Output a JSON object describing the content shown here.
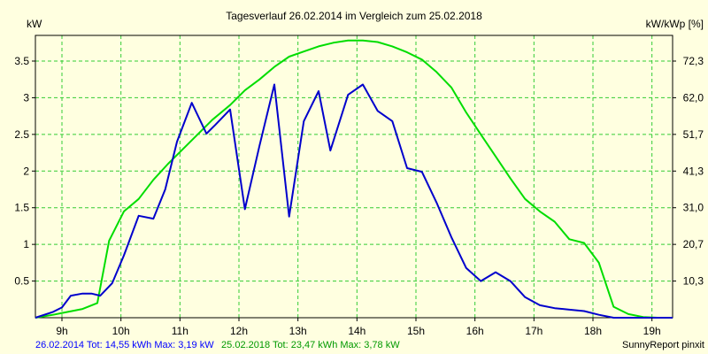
{
  "chart_data": {
    "type": "line",
    "title": "Tagesverlauf 26.02.2014 im Vergleich zum 25.02.2018",
    "ylabel_left": "kW",
    "ylabel_right": "kW/kWp [%]",
    "xlim": [
      8.55,
      19.35
    ],
    "ylim": [
      0,
      3.85
    ],
    "grid": true,
    "x_ticks": [
      {
        "x": 9,
        "label": "9h"
      },
      {
        "x": 10,
        "label": "10h"
      },
      {
        "x": 11,
        "label": "11h"
      },
      {
        "x": 12,
        "label": "12h"
      },
      {
        "x": 13,
        "label": "13h"
      },
      {
        "x": 14,
        "label": "14h"
      },
      {
        "x": 15,
        "label": "15h"
      },
      {
        "x": 16,
        "label": "16h"
      },
      {
        "x": 17,
        "label": "17h"
      },
      {
        "x": 18,
        "label": "18h"
      },
      {
        "x": 19,
        "label": "19h"
      }
    ],
    "y_ticks_left": [
      {
        "y": 0.5,
        "label": "0.5"
      },
      {
        "y": 1,
        "label": "1"
      },
      {
        "y": 1.5,
        "label": "1.5"
      },
      {
        "y": 2,
        "label": "2"
      },
      {
        "y": 2.5,
        "label": "2.5"
      },
      {
        "y": 3,
        "label": "3"
      },
      {
        "y": 3.5,
        "label": "3.5"
      }
    ],
    "y_ticks_right": [
      {
        "y": 0.5,
        "label": "10,3"
      },
      {
        "y": 1,
        "label": "20,7"
      },
      {
        "y": 1.5,
        "label": "31,0"
      },
      {
        "y": 2,
        "label": "41,3"
      },
      {
        "y": 2.5,
        "label": "51,7"
      },
      {
        "y": 3,
        "label": "62,0"
      },
      {
        "y": 3.5,
        "label": "72,3"
      }
    ],
    "series": [
      {
        "label": "26.02.2014 Tot: 14,55 kWh Max: 3,19 kW",
        "color": "#0000cc",
        "x": [
          8.55,
          8.85,
          9.0,
          9.15,
          9.35,
          9.5,
          9.65,
          9.85,
          10.05,
          10.3,
          10.55,
          10.75,
          10.95,
          11.2,
          11.45,
          11.6,
          11.85,
          12.1,
          12.35,
          12.6,
          12.85,
          13.1,
          13.35,
          13.55,
          13.85,
          14.1,
          14.35,
          14.6,
          14.85,
          15.1,
          15.35,
          15.6,
          15.85,
          16.1,
          16.35,
          16.6,
          16.85,
          17.1,
          17.35,
          17.6,
          17.85,
          18.1,
          18.35,
          18.55,
          18.8,
          19.0,
          19.35
        ],
        "values": [
          0.0,
          0.08,
          0.14,
          0.3,
          0.33,
          0.33,
          0.3,
          0.47,
          0.85,
          1.39,
          1.35,
          1.75,
          2.4,
          2.93,
          2.51,
          2.63,
          2.84,
          1.48,
          2.35,
          3.18,
          1.38,
          2.68,
          3.09,
          2.28,
          3.04,
          3.18,
          2.82,
          2.68,
          2.04,
          1.99,
          1.57,
          1.1,
          0.68,
          0.5,
          0.62,
          0.5,
          0.28,
          0.17,
          0.13,
          0.11,
          0.09,
          0.04,
          0.0,
          0.0,
          0.0,
          0.0,
          0.0
        ]
      },
      {
        "label": "25.02.2018 Tot: 23,47 kWh Max: 3,78 kW",
        "color": "#00dd00",
        "x": [
          8.55,
          8.85,
          9.1,
          9.35,
          9.6,
          9.8,
          10.05,
          10.3,
          10.55,
          10.8,
          11.05,
          11.3,
          11.55,
          11.85,
          12.1,
          12.35,
          12.6,
          12.85,
          13.1,
          13.35,
          13.6,
          13.85,
          14.1,
          14.35,
          14.6,
          14.85,
          15.1,
          15.35,
          15.6,
          15.85,
          16.1,
          16.35,
          16.6,
          16.85,
          17.1,
          17.35,
          17.6,
          17.85,
          18.1,
          18.35,
          18.6,
          18.85,
          19.1,
          19.35
        ],
        "values": [
          0.0,
          0.04,
          0.08,
          0.12,
          0.2,
          1.05,
          1.45,
          1.62,
          1.88,
          2.1,
          2.3,
          2.5,
          2.7,
          2.9,
          3.1,
          3.25,
          3.42,
          3.56,
          3.63,
          3.7,
          3.75,
          3.78,
          3.78,
          3.76,
          3.7,
          3.62,
          3.52,
          3.35,
          3.14,
          2.8,
          2.5,
          2.2,
          1.9,
          1.62,
          1.45,
          1.31,
          1.07,
          1.02,
          0.75,
          0.15,
          0.05,
          0.01,
          0.0,
          0.0
        ]
      }
    ],
    "footer": {
      "series1_text": "26.02.2014 Tot: 14,55 kWh Max: 3,19 kW",
      "series2_text": "25.02.2018 Tot: 23,47 kWh Max: 3,78 kW",
      "credit": "SunnyReport pinxit"
    }
  },
  "colors": {
    "background": "#ffffe0",
    "grid": "#33cc33",
    "axis": "#000000"
  }
}
